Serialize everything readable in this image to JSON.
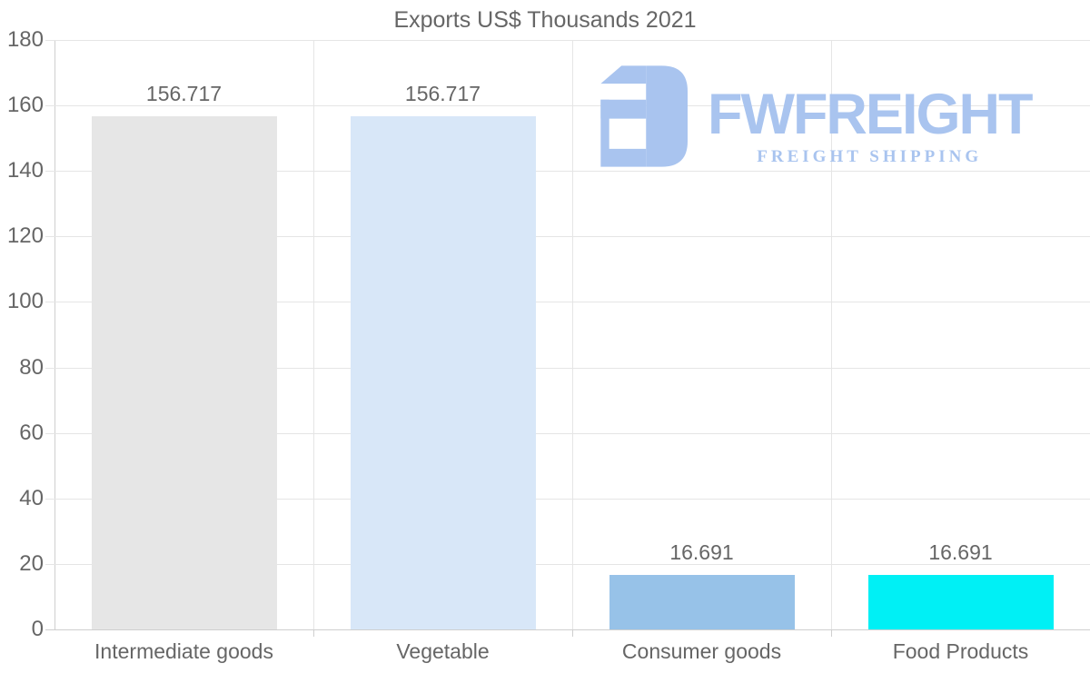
{
  "chart_data": {
    "type": "bar",
    "title": "Exports US$ Thousands 2021",
    "categories": [
      "Intermediate goods",
      "Vegetable",
      "Consumer goods",
      "Food Products"
    ],
    "values": [
      156.717,
      156.717,
      16.691,
      16.691
    ],
    "value_labels": [
      "156.717",
      "156.717",
      "16.691",
      "16.691"
    ],
    "bar_colors": [
      "#e6e6e6",
      "#d8e7f8",
      "#97c2e8",
      "#00f0f5"
    ],
    "ylim": [
      0,
      180
    ],
    "ytick_step": 20,
    "ytick_labels": [
      "0",
      "20",
      "40",
      "60",
      "80",
      "100",
      "120",
      "140",
      "160",
      "180"
    ],
    "grid": "horizontal gridlines + vertical category separators",
    "legend": false,
    "xlabel": "",
    "ylabel": ""
  },
  "watermark": {
    "wordmark": "FWFREIGHT",
    "subtitle": "FREIGHT SHIPPING",
    "icon": "fwfreight-mirrored-f-mark",
    "color": "#a9c4ef"
  },
  "style": {
    "text_color": "#666666",
    "gridline_color": "#e5e5e5",
    "axis_color": "#cfcfcf",
    "background": "#ffffff"
  }
}
